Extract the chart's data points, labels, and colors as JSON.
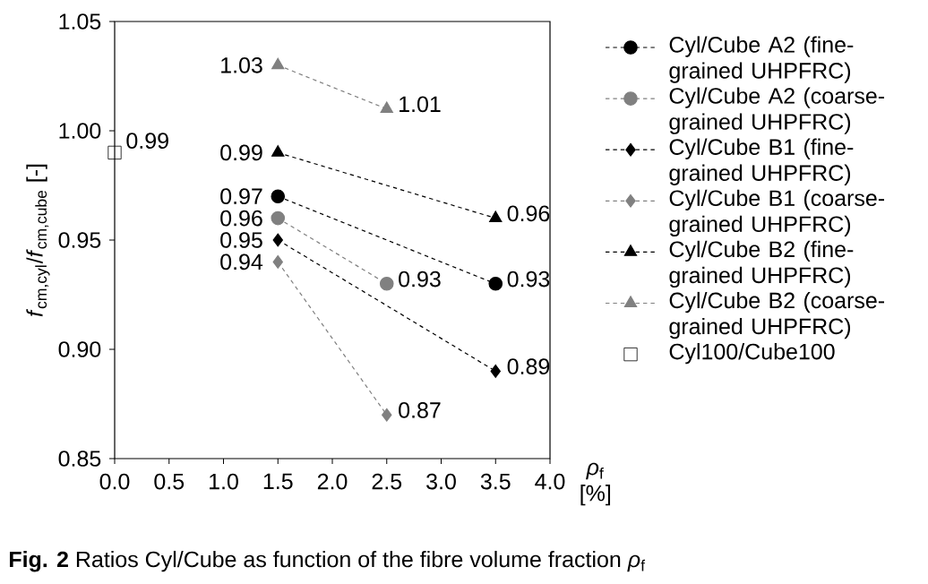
{
  "chart_data": {
    "type": "line",
    "ylabel": "*f*$_{cm,cyl}$/*f*$_{cm,cube}$ [-]",
    "xlabel": "*ρ*$_{f}$ [%]",
    "xlim": [
      0,
      4
    ],
    "ylim": [
      0.85,
      1.05
    ],
    "xticks": [
      {
        "value": 0,
        "label": "0.0"
      },
      0.5,
      {
        "value": 1,
        "label": "1.0"
      },
      1.5,
      {
        "value": 2,
        "label": "2.0"
      },
      2.5,
      {
        "value": 3,
        "label": "3.0"
      },
      3.5,
      {
        "value": 4,
        "label": "4.0"
      }
    ],
    "yticks": [
      0.85,
      {
        "value": 0.9,
        "label": "0.90"
      },
      0.95,
      {
        "value": 1,
        "label": "1.00"
      },
      1.05
    ],
    "data_labels": true,
    "legend": "right",
    "series": [
      {
        "name": "Cyl/Cube A2 (fine-grained UHPFRC)",
        "color": "#000000",
        "marker": "circle",
        "line_style": "dashed",
        "x": [
          1.5,
          3.5
        ],
        "values": [
          0.97,
          0.93
        ]
      },
      {
        "name": "Cyl/Cube A2 (coarse-grained UHPFRC)",
        "color": "#808080",
        "marker": "circle",
        "line_style": "dashed",
        "x": [
          1.5,
          2.5
        ],
        "values": [
          0.96,
          0.93
        ]
      },
      {
        "name": "Cyl/Cube B1 (fine-grained UHPFRC)",
        "color": "#000000",
        "marker": "diamond",
        "line_style": "dashed",
        "x": [
          1.5,
          3.5
        ],
        "values": [
          0.95,
          0.89
        ]
      },
      {
        "name": "Cyl/Cube B1 (coarse-grained UHPFRC)",
        "color": "#808080",
        "marker": "diamond",
        "line_style": "dashed",
        "x": [
          1.5,
          2.5
        ],
        "values": [
          0.94,
          0.87
        ]
      },
      {
        "name": "Cyl/Cube B2 (fine-grained UHPFRC)",
        "color": "#000000",
        "marker": "triangle",
        "line_style": "dashed",
        "x": [
          1.5,
          3.5
        ],
        "values": [
          0.99,
          0.96
        ]
      },
      {
        "name": "Cyl/Cube B2 (coarse-grained UHPFRC)",
        "color": "#808080",
        "marker": "triangle",
        "line_style": "dashed",
        "x": [
          1.5,
          2.5
        ],
        "values": [
          1.03,
          1.01
        ]
      },
      {
        "name": "Cyl100/Cube100",
        "type": "scatter",
        "color": "#000000",
        "marker": "square",
        "x": [
          0
        ],
        "values": [
          0.99
        ]
      }
    ],
    "annotations": [
      "**Fig. 2**    Ratios Cyl/Cube as function of the fibre volume fraction *ρ*$_{f}$"
    ]
  }
}
